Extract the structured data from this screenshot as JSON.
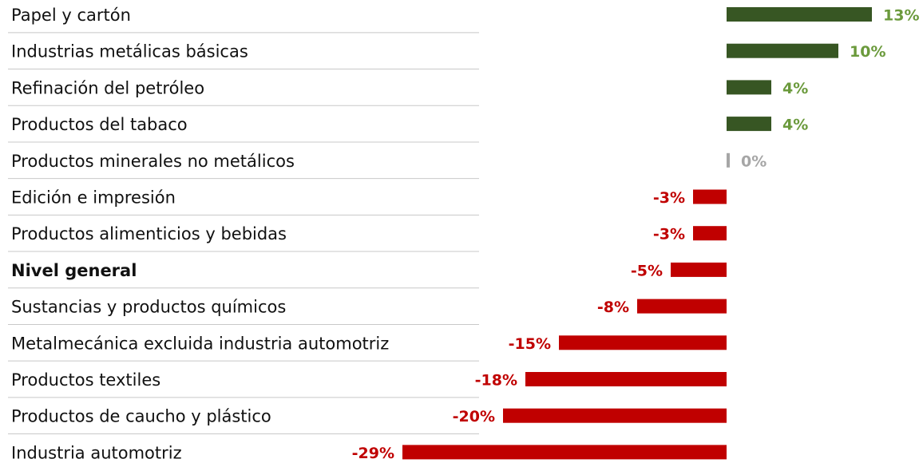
{
  "chart_data": {
    "type": "bar",
    "categories": [
      "Papel y cartón",
      "Industrias metálicas básicas",
      "Refinación del petróleo",
      "Productos del tabaco",
      "Productos minerales no metálicos",
      "Edición e impresión",
      "Productos alimenticios y bebidas",
      "Nivel general",
      "Sustancias y productos químicos",
      "Metalmecánica excluida industria automotriz",
      "Productos textiles",
      "Productos de caucho y plástico",
      "Industria automotriz"
    ],
    "values": [
      13,
      10,
      4,
      4,
      0,
      -3,
      -3,
      -5,
      -8,
      -15,
      -18,
      -20,
      -29
    ],
    "value_labels": [
      "13%",
      "10%",
      "4%",
      "4%",
      "0%",
      "-3%",
      "-3%",
      "-5%",
      "-8%",
      "-15%",
      "-18%",
      "-20%",
      "-29%"
    ],
    "colors": {
      "positive": "#375623",
      "negative": "#c00000",
      "zero": "#a6a6a6"
    },
    "label_colors": {
      "positive": "#6b9a3c",
      "negative": "#c00000",
      "zero": "#a6a6a6"
    }
  }
}
